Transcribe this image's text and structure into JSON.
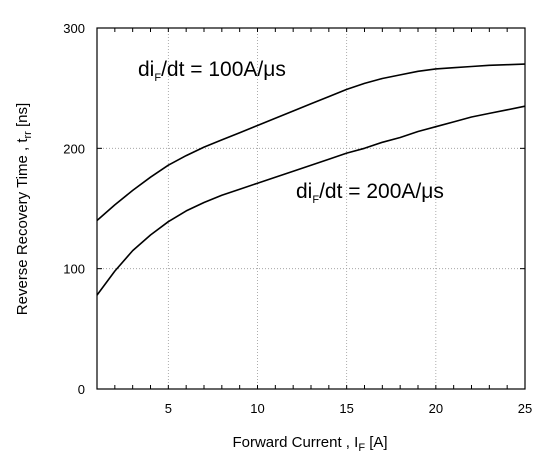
{
  "chart_data": {
    "type": "line",
    "xlabel": {
      "main": "Forward Current , I",
      "sub": "F",
      "unit": " [A]"
    },
    "ylabel": {
      "main": "Reverse Recovery Time , t",
      "sub": "rr",
      "unit": " [ns]"
    },
    "xlim": [
      1,
      25
    ],
    "ylim": [
      0,
      300
    ],
    "x_ticks": [
      5,
      10,
      15,
      20,
      25
    ],
    "y_ticks": [
      0,
      100,
      200,
      300
    ],
    "x_minor": [
      1,
      2,
      3,
      4,
      5,
      6,
      7,
      8,
      9,
      10,
      11,
      12,
      13,
      14,
      15,
      16,
      17,
      18,
      19,
      20,
      21,
      22,
      23,
      24,
      25
    ],
    "grid": {
      "major": true,
      "style": "dotted"
    },
    "series": [
      {
        "annotation": {
          "pre": "di",
          "sub": "F",
          "post": "/dt = 100A/μs"
        },
        "x": [
          1,
          2,
          3,
          4,
          5,
          6,
          7,
          8,
          9,
          10,
          11,
          12,
          13,
          14,
          15,
          16,
          17,
          18,
          19,
          20,
          21,
          22,
          23,
          24,
          25
        ],
        "y": [
          140,
          153,
          165,
          176,
          186,
          194,
          201,
          207,
          213,
          219,
          225,
          231,
          237,
          243,
          249,
          254,
          258,
          261,
          264,
          266,
          267,
          268,
          269,
          269.5,
          270
        ]
      },
      {
        "annotation": {
          "pre": "di",
          "sub": "F",
          "post": "/dt = 200A/μs"
        },
        "x": [
          1,
          2,
          3,
          4,
          5,
          6,
          7,
          8,
          9,
          10,
          11,
          12,
          13,
          14,
          15,
          16,
          17,
          18,
          19,
          20,
          21,
          22,
          23,
          24,
          25
        ],
        "y": [
          78,
          98,
          115,
          128,
          139,
          148,
          155,
          161,
          166,
          171,
          176,
          181,
          186,
          191,
          196,
          200,
          205,
          209,
          214,
          218,
          222,
          226,
          229,
          232,
          235
        ]
      }
    ]
  }
}
